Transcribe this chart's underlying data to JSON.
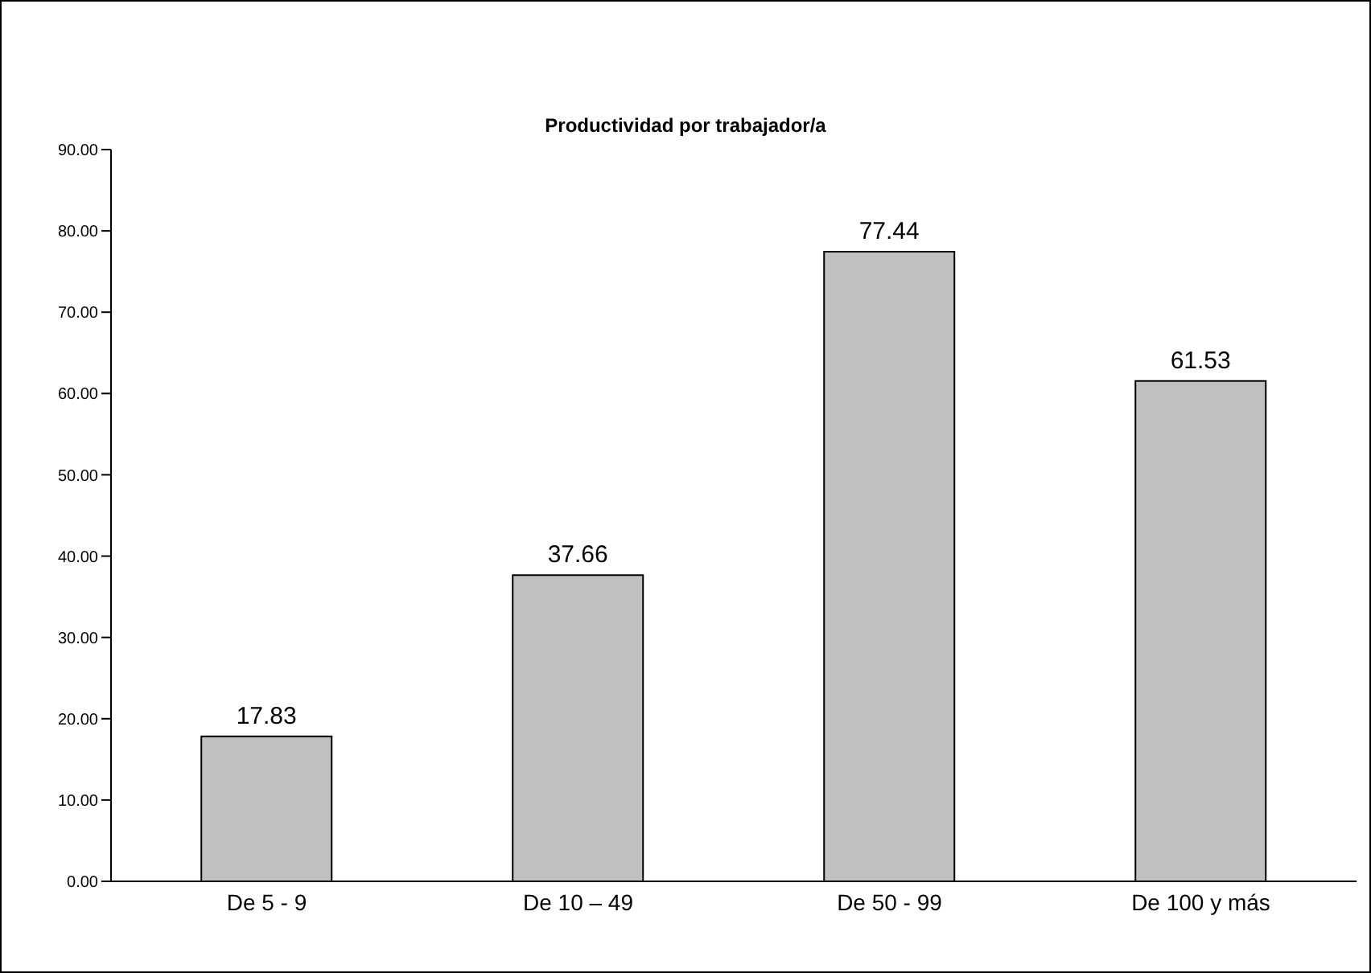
{
  "chart_data": {
    "type": "bar",
    "title": "Productividad por trabajador/a",
    "categories": [
      "De 5 - 9",
      "De 10 – 49",
      "De 50 - 99",
      "De 100 y más"
    ],
    "values": [
      17.83,
      37.66,
      77.44,
      61.53
    ],
    "color": "#c0c0c0",
    "ylim": [
      0,
      90
    ],
    "yticks": [
      {
        "value": 0,
        "label": "0.00"
      },
      {
        "value": 10,
        "label": "10.00"
      },
      {
        "value": 20,
        "label": "20.00"
      },
      {
        "value": 30,
        "label": "30.00"
      },
      {
        "value": 40,
        "label": "40.00"
      },
      {
        "value": 50,
        "label": "50.00"
      },
      {
        "value": 60,
        "label": "60.00"
      },
      {
        "value": 70,
        "label": "70.00"
      },
      {
        "value": 80,
        "label": "80.00"
      },
      {
        "value": 90,
        "label": "90.00"
      }
    ],
    "data_labels": true,
    "grid": false,
    "legend": false
  }
}
